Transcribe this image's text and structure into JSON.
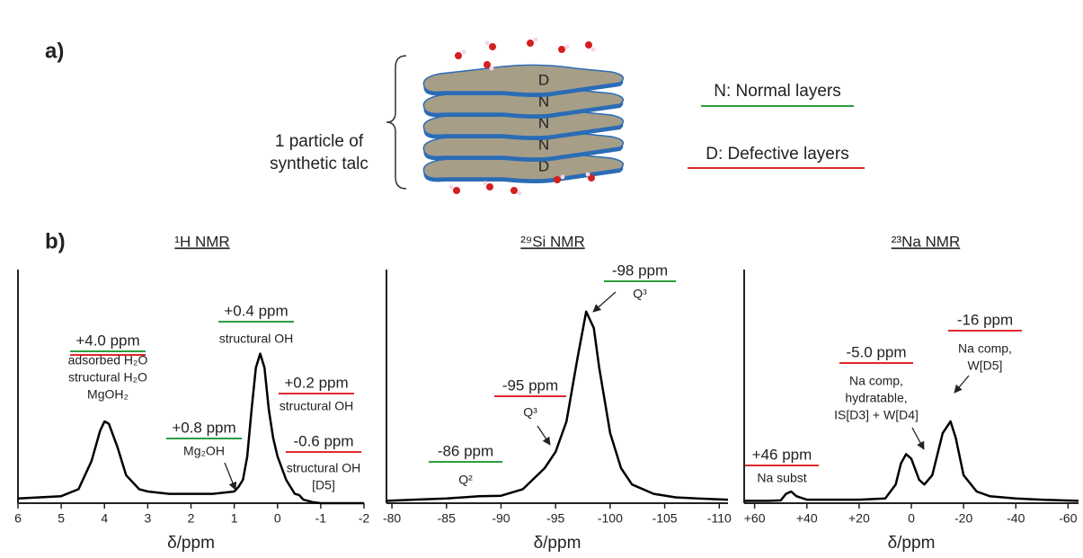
{
  "panel_a": {
    "label": "a)",
    "particle_label": [
      "1 particle of",
      "synthetic talc"
    ],
    "layers": [
      "D",
      "N",
      "N",
      "N",
      "D"
    ],
    "legend": [
      {
        "text": "N: Normal layers",
        "color": "#2e9e3e"
      },
      {
        "text": "D: Defective layers",
        "color": "#e0292b"
      }
    ]
  },
  "panel_b_label": "b)",
  "chart_data": [
    {
      "type": "line",
      "title": "¹H NMR",
      "xlabel": "δ/ppm",
      "xlim": [
        6,
        -2
      ],
      "xticks": [
        6,
        5,
        4,
        3,
        2,
        1,
        0,
        -1,
        -2
      ],
      "ylim": [
        0,
        100
      ],
      "x": [
        6,
        5.5,
        5,
        4.6,
        4.3,
        4.1,
        4.0,
        3.9,
        3.7,
        3.5,
        3.2,
        3,
        2.5,
        2,
        1.5,
        1.0,
        0.9,
        0.8,
        0.7,
        0.6,
        0.5,
        0.4,
        0.3,
        0.2,
        0.1,
        0,
        -0.2,
        -0.4,
        -0.5,
        -0.6,
        -0.8,
        -1,
        -2
      ],
      "series": [
        {
          "color": "#000000",
          "values": [
            2,
            2.5,
            3,
            6,
            18,
            31,
            35,
            34,
            24,
            12,
            6,
            5,
            4,
            4,
            4,
            5,
            7,
            10,
            20,
            40,
            58,
            64,
            58,
            40,
            28,
            20,
            10,
            4,
            3.5,
            1.5,
            0.5,
            0,
            0
          ]
        }
      ],
      "annotations": [
        {
          "text": "+4.0 ppm",
          "colors": [
            "#2e9e3e",
            "#e0292b"
          ],
          "details": [
            "adsorbed H₂O",
            "structural H₂O",
            "MgOH₂"
          ]
        },
        {
          "text": "+0.4 ppm",
          "colors": [
            "#2e9e3e"
          ],
          "details": [
            "structural OH"
          ]
        },
        {
          "text": "+0.8 ppm",
          "colors": [
            "#2e9e3e"
          ],
          "details": [
            "Mg₂OH"
          ]
        },
        {
          "text": "+0.2 ppm",
          "colors": [
            "#e0292b"
          ],
          "details": [
            "structural OH"
          ]
        },
        {
          "text": "-0.6 ppm",
          "colors": [
            "#e0292b"
          ],
          "details": [
            "structural OH",
            "[D5]"
          ]
        }
      ]
    },
    {
      "type": "line",
      "title": "²⁹Si NMR",
      "xlabel": "δ/ppm",
      "xlim": [
        -79.5,
        -110.8
      ],
      "xticks": [
        -80,
        -85,
        -90,
        -95,
        -100,
        -105,
        -110
      ],
      "ylim": [
        0,
        100
      ],
      "x": [
        -79.5,
        -82,
        -85,
        -88,
        -90,
        -92,
        -94,
        -95,
        -96,
        -97,
        -97.8,
        -98.5,
        -99,
        -100,
        -101,
        -102,
        -104,
        -106,
        -108,
        -110.8
      ],
      "series": [
        {
          "color": "#000000",
          "values": [
            1,
            1.5,
            2,
            3,
            3.2,
            6,
            15,
            22,
            35,
            62,
            82,
            75,
            58,
            30,
            15,
            8,
            4,
            2.5,
            2,
            1.5
          ]
        }
      ],
      "annotations": [
        {
          "text": "-98 ppm",
          "colors": [
            "#2e9e3e"
          ],
          "details": [
            "Q³"
          ]
        },
        {
          "text": "-95 ppm",
          "colors": [
            "#e0292b"
          ],
          "details": [
            "Q³"
          ]
        },
        {
          "text": "-86 ppm",
          "colors": [
            "#2e9e3e"
          ],
          "details": [
            "Q²"
          ]
        }
      ]
    },
    {
      "type": "line",
      "title": "²³Na NMR",
      "xlabel": "δ/ppm",
      "xlim": [
        64,
        -64
      ],
      "xticks": [
        {
          "value": 60,
          "label": "+60"
        },
        {
          "value": 40,
          "label": "+40"
        },
        {
          "value": 20,
          "label": "+20"
        },
        0,
        -20,
        -40,
        -60
      ],
      "ylim": [
        0,
        100
      ],
      "x": [
        64,
        55,
        50,
        48,
        46,
        44,
        40,
        30,
        20,
        10,
        6,
        4,
        2,
        0,
        -3,
        -5,
        -8,
        -12,
        -15,
        -17,
        -20,
        -25,
        -30,
        -40,
        -50,
        -64
      ],
      "series": [
        {
          "color": "#000000",
          "values": [
            1,
            1,
            1.2,
            4,
            5,
            3,
            1.5,
            1.5,
            1.5,
            2,
            8,
            17,
            21,
            19,
            10,
            8,
            12,
            30,
            35,
            28,
            12,
            5,
            3,
            2,
            1.5,
            1
          ]
        }
      ],
      "annotations": [
        {
          "text": "-16 ppm",
          "colors": [
            "#e0292b"
          ],
          "details": [
            "Na comp,",
            "W[D5]"
          ]
        },
        {
          "text": "-5.0 ppm",
          "colors": [
            "#e0292b"
          ],
          "details": [
            "Na comp,",
            "hydratable,",
            "IS[D3] + W[D4]"
          ]
        },
        {
          "text": "+46 ppm",
          "colors": [
            "#e0292b"
          ],
          "details": [
            "Na subst"
          ]
        }
      ]
    }
  ]
}
